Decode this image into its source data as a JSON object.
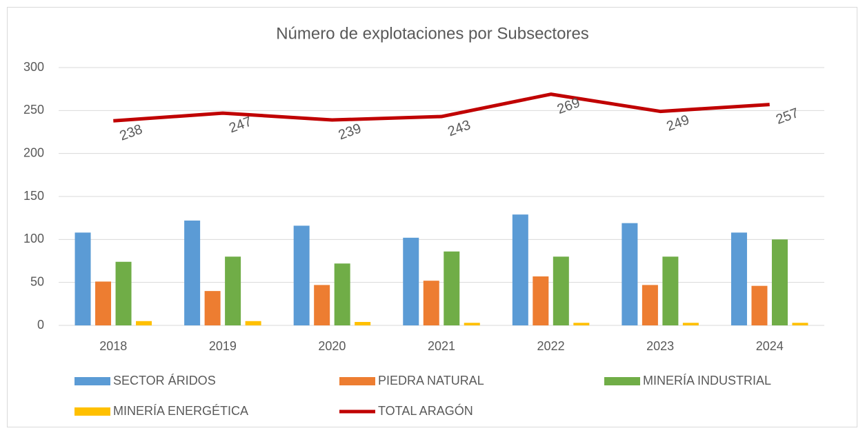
{
  "chart_data": {
    "type": "bar_line",
    "title": "Número de explotaciones por Subsectores",
    "categories": [
      "2018",
      "2019",
      "2020",
      "2021",
      "2022",
      "2023",
      "2024"
    ],
    "series": [
      {
        "name": "SECTOR ÁRIDOS",
        "color": "#5b9bd5",
        "type": "bar",
        "values": [
          108,
          122,
          116,
          102,
          129,
          119,
          108
        ]
      },
      {
        "name": "PIEDRA NATURAL",
        "color": "#ed7d31",
        "type": "bar",
        "values": [
          51,
          40,
          47,
          52,
          57,
          47,
          46
        ]
      },
      {
        "name": "MINERÍA INDUSTRIAL",
        "color": "#70ad47",
        "type": "bar",
        "values": [
          74,
          80,
          72,
          86,
          80,
          80,
          100
        ]
      },
      {
        "name": "MINERÍA ENERGÉTICA",
        "color": "#ffc000",
        "type": "bar",
        "values": [
          5,
          5,
          4,
          3,
          3,
          3,
          3
        ]
      },
      {
        "name": "TOTAL ARAGÓN",
        "color": "#c00000",
        "type": "line",
        "data_labels": true,
        "values": [
          238,
          247,
          239,
          243,
          269,
          249,
          257
        ]
      }
    ],
    "ylim": [
      0,
      300
    ],
    "yticks": [
      0,
      50,
      100,
      150,
      200,
      250,
      300
    ],
    "grid": true,
    "legend": "bottom"
  }
}
